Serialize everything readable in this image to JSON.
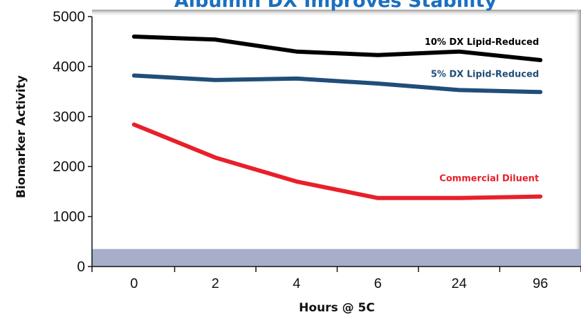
{
  "colors": {
    "title": "#1b6fbf",
    "band": "#a7aec9",
    "axis": "#111111",
    "frame_shadow": "#b0b0b0"
  },
  "chart_data": {
    "type": "line",
    "title": "Albumin DX Improves Stability",
    "xlabel": "Hours @ 5C",
    "ylabel": "Biomarker Activity",
    "categories": [
      "0",
      "2",
      "4",
      "6",
      "24",
      "96"
    ],
    "ylim": [
      0,
      5000
    ],
    "yticks": [
      0,
      1000,
      2000,
      3000,
      4000,
      5000
    ],
    "band": [
      0,
      350
    ],
    "grid": false,
    "legend": "inline labels at right end of each line",
    "series": [
      {
        "name": "10% DX Lipid-Reduced",
        "color": "#000000",
        "values": [
          4600,
          4540,
          4300,
          4230,
          4300,
          4130
        ]
      },
      {
        "name": "5% DX Lipid-Reduced",
        "color": "#1f4e79",
        "values": [
          3820,
          3730,
          3760,
          3660,
          3530,
          3490
        ]
      },
      {
        "name": "Commercial Diluent",
        "color": "#e8202a",
        "values": [
          2840,
          2180,
          1700,
          1370,
          1370,
          1400
        ]
      }
    ]
  }
}
